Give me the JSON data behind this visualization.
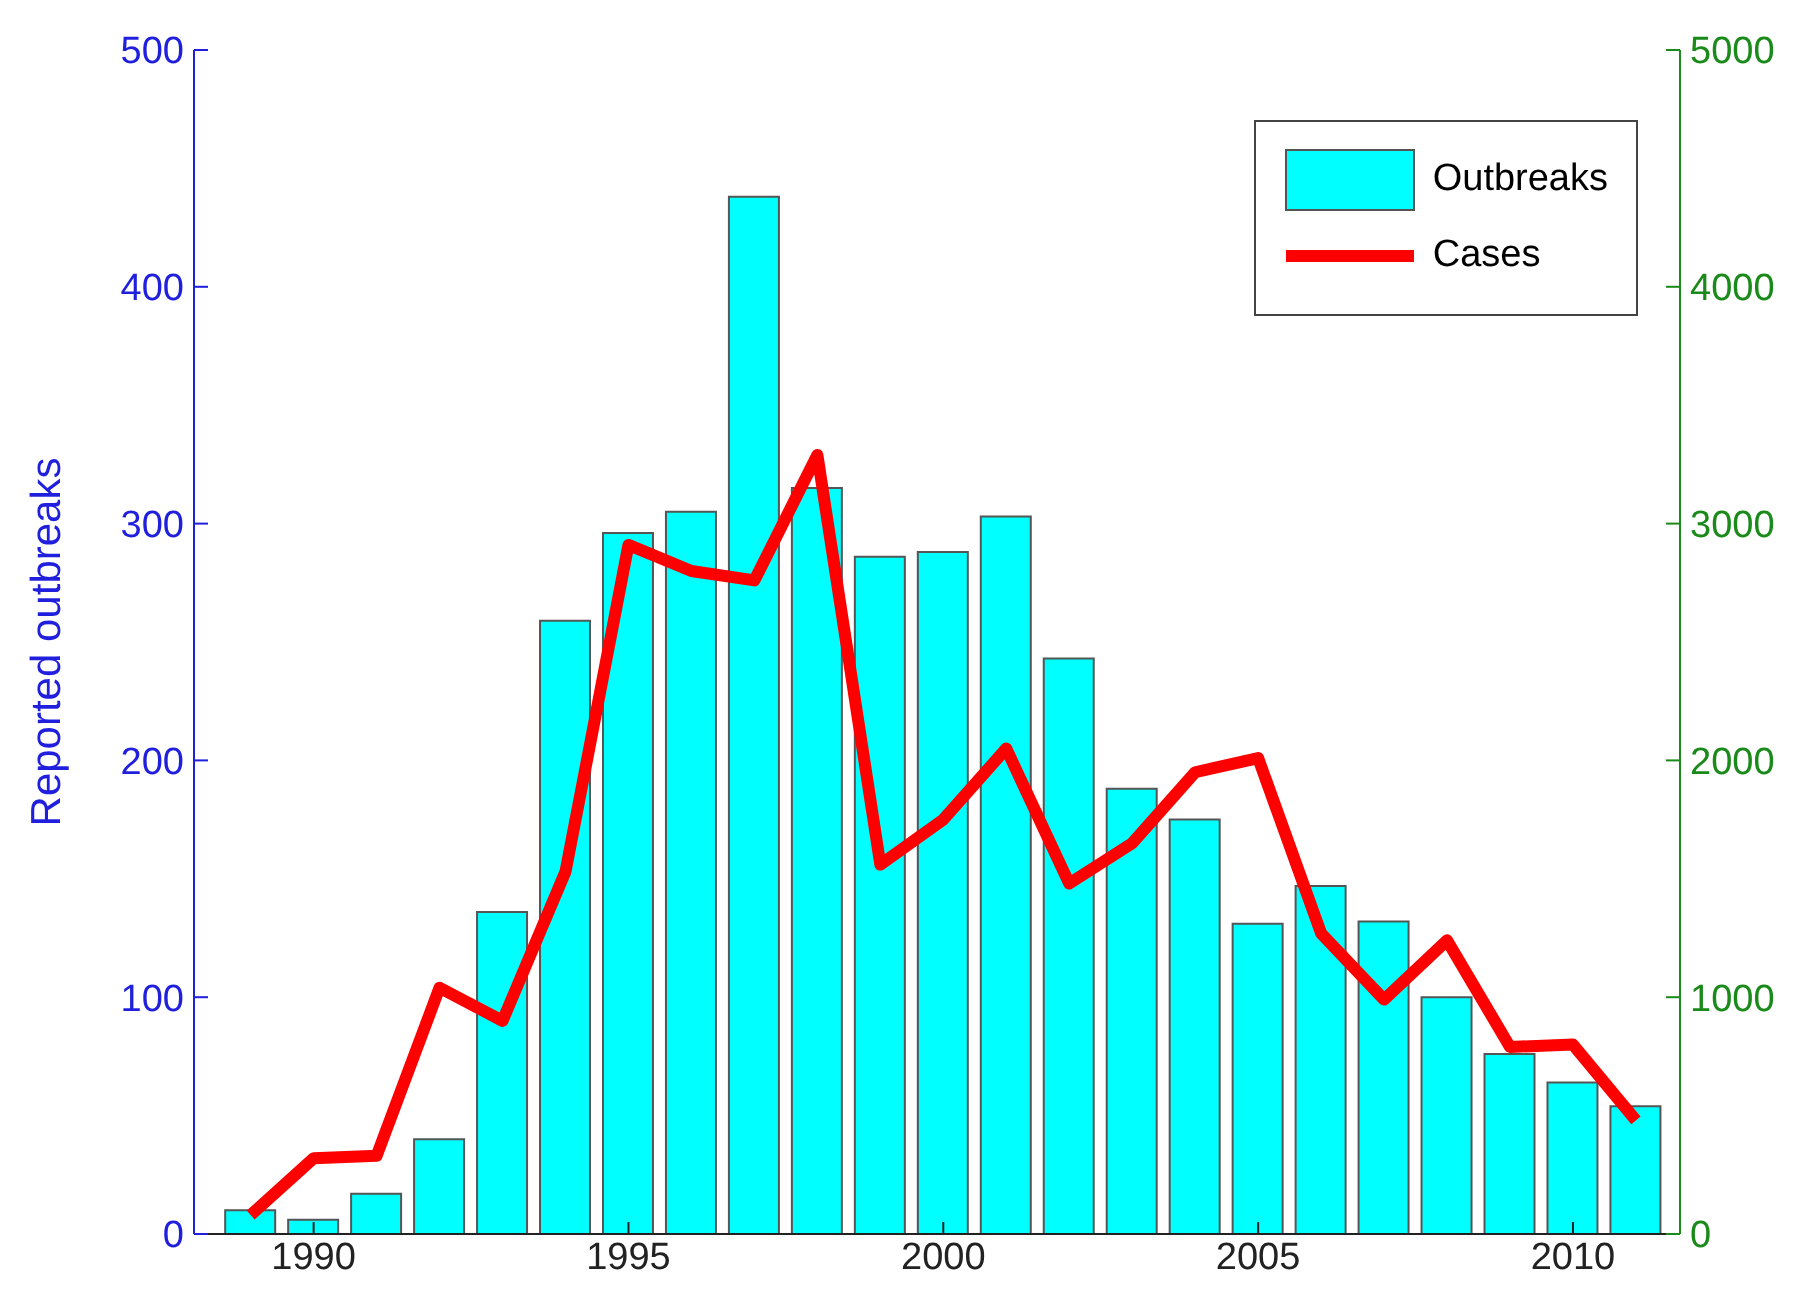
{
  "chart_data": {
    "type": "bar",
    "ylabel": "Reported outbreaks",
    "x": [
      1989,
      1990,
      1991,
      1992,
      1993,
      1994,
      1995,
      1996,
      1997,
      1998,
      1999,
      2000,
      2001,
      2002,
      2003,
      2004,
      2005,
      2006,
      2007,
      2008,
      2009,
      2010,
      2011
    ],
    "series": [
      {
        "name": "Outbreaks",
        "color": "#00ffff",
        "values": [
          10,
          6,
          17,
          40,
          136,
          259,
          296,
          305,
          438,
          315,
          286,
          288,
          303,
          243,
          188,
          175,
          131,
          147,
          132,
          100,
          76,
          64,
          54
        ]
      },
      {
        "name": "Cases",
        "type": "line",
        "axis": "y2",
        "color": "#ff0000",
        "values": [
          80,
          320,
          330,
          1040,
          900,
          1530,
          2910,
          2800,
          2760,
          3290,
          1560,
          1750,
          2050,
          1480,
          1650,
          1950,
          2010,
          1270,
          990,
          1240,
          790,
          800,
          480
        ]
      }
    ],
    "xlim": [
      1988.1,
      2011.7
    ],
    "xticks": [
      1990,
      1995,
      2000,
      2005,
      2010
    ],
    "ylim": [
      0,
      500
    ],
    "yticks": [
      0,
      100,
      200,
      300,
      400,
      500
    ],
    "y2lim": [
      0,
      5000
    ],
    "y2ticks": [
      0,
      1000,
      2000,
      3000,
      4000,
      5000
    ],
    "legend": "top right",
    "grid": false,
    "marker": "none",
    "line_style": "solid"
  }
}
